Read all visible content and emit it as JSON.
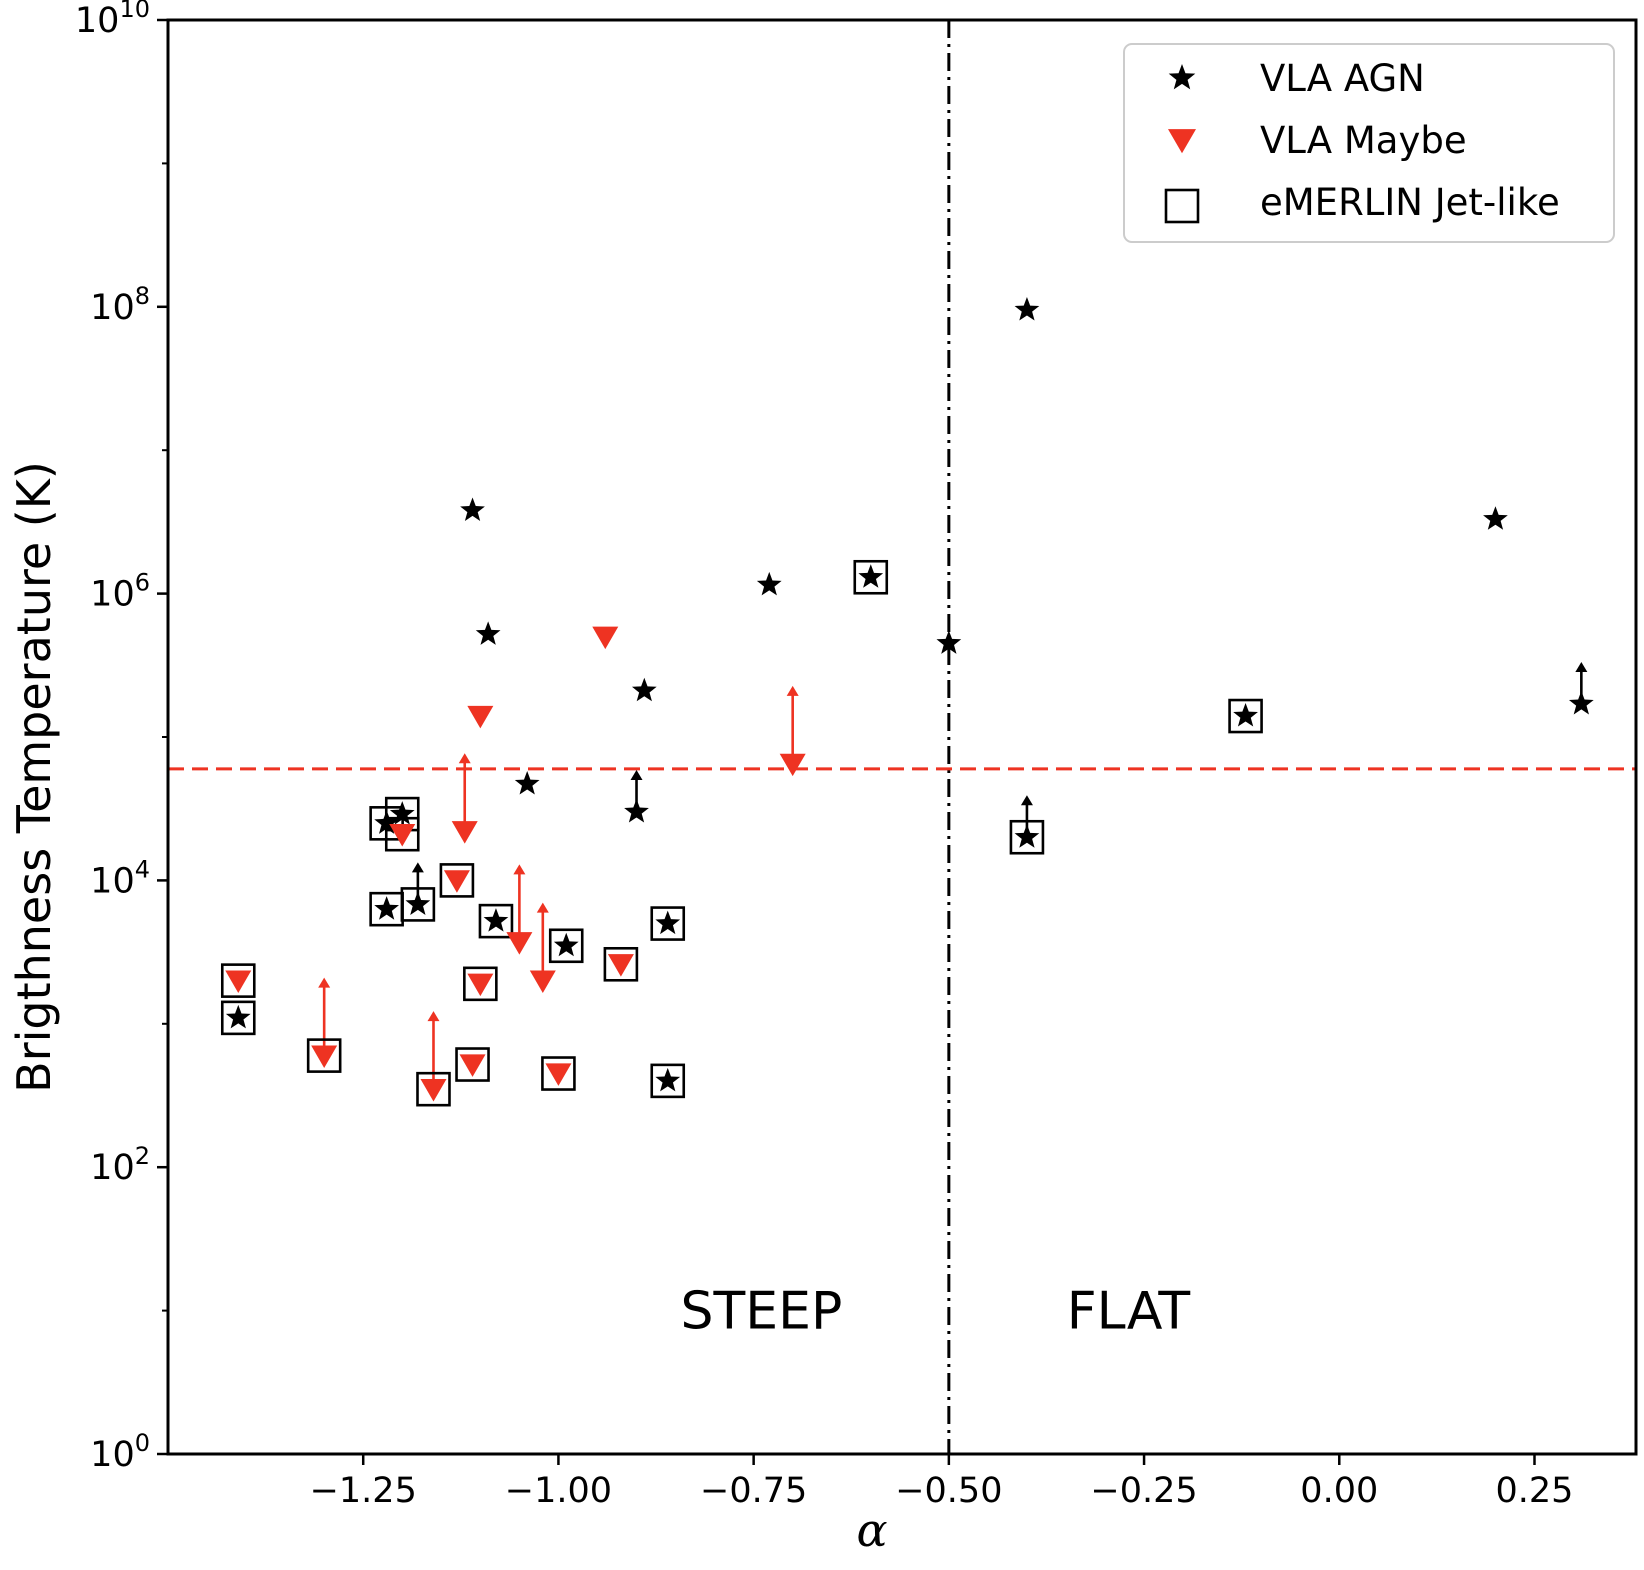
{
  "chart_data": {
    "type": "scatter",
    "title": "",
    "xlabel": "α",
    "ylabel": "Brigthness Temperature (K)",
    "xscale": "linear",
    "yscale": "log",
    "xlim": [
      -1.5,
      0.38
    ],
    "ylim": [
      1,
      10000000000
    ],
    "xticks": [
      -1.25,
      -1.0,
      -0.75,
      -0.5,
      -0.25,
      0.0,
      0.25
    ],
    "xtick_labels": [
      "−1.25",
      "−1.00",
      "−0.75",
      "−0.50",
      "−0.25",
      "0.00",
      "0.25"
    ],
    "yticks": [
      {
        "value": 1,
        "base": "10",
        "exp": "0"
      },
      {
        "value": 100,
        "base": "10",
        "exp": "2"
      },
      {
        "value": 10000,
        "base": "10",
        "exp": "4"
      },
      {
        "value": 1000000,
        "base": "10",
        "exp": "6"
      },
      {
        "value": 100000000,
        "base": "10",
        "exp": "8"
      },
      {
        "value": 10000000000,
        "base": "10",
        "exp": "10"
      }
    ],
    "grid": false,
    "legend_position": "top-right",
    "legend": [
      {
        "label": "VLA AGN",
        "marker": "star",
        "color": "#000000"
      },
      {
        "label": "VLA Maybe",
        "marker": "triangle-down",
        "color": "#ee3322"
      },
      {
        "label": "eMERLIN Jet-like",
        "marker": "square-open",
        "color": "#000000"
      }
    ],
    "reference_lines": [
      {
        "orientation": "vertical",
        "x": -0.5,
        "style": "dash-dot",
        "color": "#000000"
      },
      {
        "orientation": "horizontal",
        "y": 60000,
        "style": "dashed",
        "color": "#ee3322"
      }
    ],
    "annotations": [
      {
        "text": "STEEP",
        "x": -0.74,
        "y": 10
      },
      {
        "text": "FLAT",
        "x": -0.27,
        "y": 10
      }
    ],
    "series": [
      {
        "name": "VLA AGN",
        "marker": "star",
        "color": "#000000",
        "points": [
          {
            "x": -1.41,
            "y": 1100,
            "jet": true
          },
          {
            "x": -1.22,
            "y": 6300,
            "jet": true
          },
          {
            "x": -1.22,
            "y": 25000,
            "jet": true
          },
          {
            "x": -1.2,
            "y": 29000,
            "jet": true
          },
          {
            "x": -1.18,
            "y": 6800,
            "jet": true,
            "lower_limit": true
          },
          {
            "x": -1.08,
            "y": 5200,
            "jet": true
          },
          {
            "x": -0.99,
            "y": 3500,
            "jet": true
          },
          {
            "x": -0.86,
            "y": 5000,
            "jet": true
          },
          {
            "x": -0.86,
            "y": 400,
            "jet": true
          },
          {
            "x": -0.6,
            "y": 1300000,
            "jet": true
          },
          {
            "x": -0.4,
            "y": 20000,
            "jet": true,
            "lower_limit": true
          },
          {
            "x": -0.12,
            "y": 140000,
            "jet": true
          },
          {
            "x": -1.11,
            "y": 3800000,
            "jet": false
          },
          {
            "x": -1.09,
            "y": 520000,
            "jet": false
          },
          {
            "x": -1.04,
            "y": 47000,
            "jet": false
          },
          {
            "x": -0.89,
            "y": 210000,
            "jet": false
          },
          {
            "x": -0.9,
            "y": 30000,
            "jet": false,
            "lower_limit": true
          },
          {
            "x": -0.73,
            "y": 1150000,
            "jet": false
          },
          {
            "x": -0.5,
            "y": 450000,
            "jet": false
          },
          {
            "x": -0.4,
            "y": 95000000,
            "jet": false
          },
          {
            "x": 0.2,
            "y": 3300000,
            "jet": false
          },
          {
            "x": 0.31,
            "y": 170000,
            "jet": false,
            "lower_limit": true
          }
        ]
      },
      {
        "name": "VLA Maybe",
        "marker": "triangle-down",
        "color": "#ee3322",
        "points": [
          {
            "x": -1.41,
            "y": 2000,
            "jet": true
          },
          {
            "x": -1.3,
            "y": 600,
            "jet": true,
            "upper_limit": true
          },
          {
            "x": -1.2,
            "y": 21000,
            "jet": true
          },
          {
            "x": -1.16,
            "y": 350,
            "jet": true,
            "upper_limit": true
          },
          {
            "x": -1.13,
            "y": 10000,
            "jet": true
          },
          {
            "x": -1.11,
            "y": 520,
            "jet": true
          },
          {
            "x": -1.1,
            "y": 1900,
            "jet": true
          },
          {
            "x": -1.12,
            "y": 22000,
            "jet": false,
            "upper_limit": true
          },
          {
            "x": -1.05,
            "y": 3700,
            "jet": false,
            "upper_limit": true
          },
          {
            "x": -1.02,
            "y": 2000,
            "jet": false,
            "upper_limit": true
          },
          {
            "x": -1.0,
            "y": 450,
            "jet": true
          },
          {
            "x": -0.92,
            "y": 2600,
            "jet": true
          },
          {
            "x": -1.1,
            "y": 140000,
            "jet": false
          },
          {
            "x": -0.94,
            "y": 500000,
            "jet": false
          },
          {
            "x": -0.7,
            "y": 65000,
            "jet": false,
            "upper_limit": true
          }
        ]
      }
    ]
  }
}
